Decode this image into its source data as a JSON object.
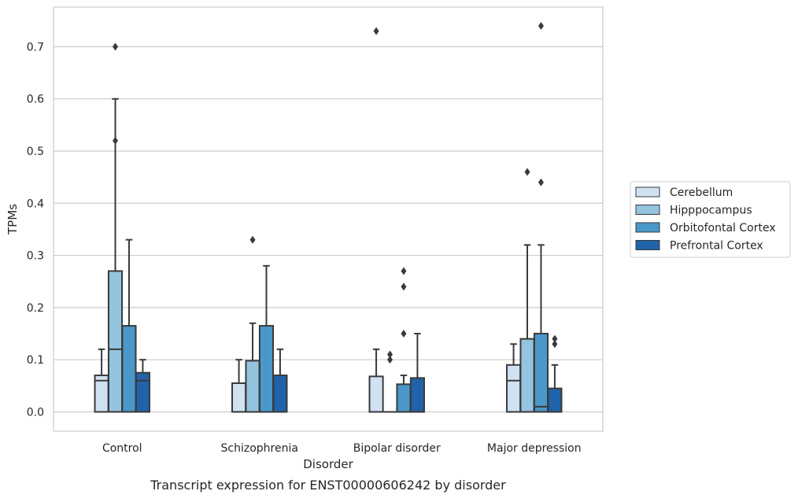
{
  "chart_data": {
    "type": "boxplot",
    "title": "",
    "caption": "Transcript expression for ENST00000606242 by disorder",
    "xlabel": "Disorder",
    "ylabel": "TPMs",
    "ylim": [
      -0.037,
      0.776
    ],
    "yticks": [
      0.0,
      0.1,
      0.2,
      0.3,
      0.4,
      0.5,
      0.6,
      0.7
    ],
    "ytick_labels": [
      "0.0",
      "0.1",
      "0.2",
      "0.3",
      "0.4",
      "0.5",
      "0.6",
      "0.7"
    ],
    "grid": "horizontal",
    "legend_position": "outside-right",
    "categories": [
      "Control",
      "Schizophrenia",
      "Bipolar disorder",
      "Major depression"
    ],
    "series": [
      {
        "name": "Cerebellum",
        "color": "#d0e1f2",
        "boxes": [
          {
            "whislo": 0.0,
            "q1": 0.0,
            "med": 0.06,
            "q3": 0.07,
            "whishi": 0.12,
            "fliers": []
          },
          {
            "whislo": 0.0,
            "q1": 0.0,
            "med": 0.0,
            "q3": 0.055,
            "whishi": 0.1,
            "fliers": []
          },
          {
            "whislo": 0.0,
            "q1": 0.0,
            "med": 0.0,
            "q3": 0.068,
            "whishi": 0.12,
            "fliers": [
              0.73
            ]
          },
          {
            "whislo": 0.0,
            "q1": 0.0,
            "med": 0.06,
            "q3": 0.09,
            "whishi": 0.13,
            "fliers": []
          }
        ]
      },
      {
        "name": "Hipppocampus",
        "color": "#94c4df",
        "boxes": [
          {
            "whislo": 0.0,
            "q1": 0.0,
            "med": 0.12,
            "q3": 0.27,
            "whishi": 0.6,
            "fliers": [
              0.7,
              0.52
            ]
          },
          {
            "whislo": 0.0,
            "q1": 0.0,
            "med": 0.0,
            "q3": 0.098,
            "whishi": 0.17,
            "fliers": [
              0.33
            ]
          },
          {
            "whislo": 0.0,
            "q1": 0.0,
            "med": 0.0,
            "q3": 0.0,
            "whishi": 0.0,
            "fliers": [
              0.11,
              0.1
            ]
          },
          {
            "whislo": 0.0,
            "q1": 0.0,
            "med": 0.0,
            "q3": 0.14,
            "whishi": 0.32,
            "fliers": [
              0.46
            ]
          }
        ]
      },
      {
        "name": "Orbitofontal Cortex",
        "color": "#4a98c9",
        "boxes": [
          {
            "whislo": 0.0,
            "q1": 0.0,
            "med": 0.0,
            "q3": 0.165,
            "whishi": 0.33,
            "fliers": []
          },
          {
            "whislo": 0.0,
            "q1": 0.0,
            "med": 0.0,
            "q3": 0.165,
            "whishi": 0.28,
            "fliers": []
          },
          {
            "whislo": 0.0,
            "q1": 0.0,
            "med": 0.0,
            "q3": 0.053,
            "whishi": 0.07,
            "fliers": [
              0.27,
              0.24,
              0.15
            ]
          },
          {
            "whislo": 0.0,
            "q1": 0.0,
            "med": 0.01,
            "q3": 0.15,
            "whishi": 0.32,
            "fliers": [
              0.74,
              0.44
            ]
          }
        ]
      },
      {
        "name": "Prefrontal Cortex",
        "color": "#2163aa",
        "boxes": [
          {
            "whislo": 0.0,
            "q1": 0.0,
            "med": 0.06,
            "q3": 0.075,
            "whishi": 0.1,
            "fliers": []
          },
          {
            "whislo": 0.0,
            "q1": 0.0,
            "med": 0.0,
            "q3": 0.07,
            "whishi": 0.12,
            "fliers": []
          },
          {
            "whislo": 0.0,
            "q1": 0.0,
            "med": 0.0,
            "q3": 0.065,
            "whishi": 0.15,
            "fliers": []
          },
          {
            "whislo": 0.0,
            "q1": 0.0,
            "med": 0.0,
            "q3": 0.045,
            "whishi": 0.09,
            "fliers": [
              0.14,
              0.13
            ]
          }
        ]
      }
    ]
  }
}
